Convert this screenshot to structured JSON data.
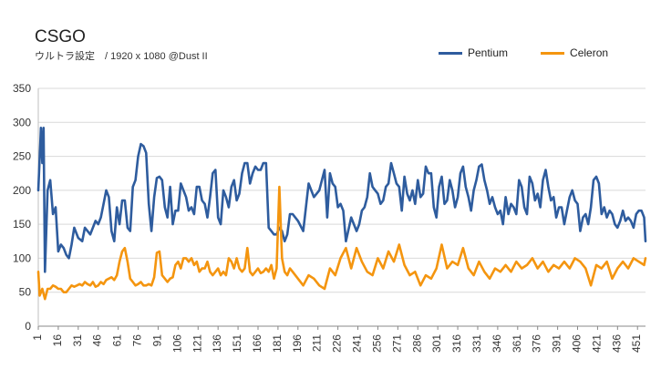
{
  "chart_data": {
    "type": "line",
    "title": "CSGO",
    "subtitle": "ウルトラ設定　/ 1920 x 1080 @Dust II",
    "xlabel": "",
    "ylabel": "",
    "ylim": [
      0,
      350
    ],
    "yticks": [
      0,
      50,
      100,
      150,
      200,
      250,
      300,
      350
    ],
    "xlim": [
      1,
      457
    ],
    "xticks": [
      1,
      16,
      31,
      46,
      61,
      76,
      91,
      106,
      121,
      136,
      151,
      166,
      181,
      196,
      211,
      226,
      241,
      256,
      271,
      286,
      301,
      316,
      331,
      346,
      361,
      376,
      391,
      406,
      421,
      436,
      451
    ],
    "grid": "horizontal",
    "legend_position": "top-right",
    "series": [
      {
        "name": "Pentium",
        "color": "#2E5C9E",
        "x": [
          1,
          3,
          4,
          5,
          6,
          8,
          10,
          12,
          14,
          16,
          18,
          20,
          22,
          24,
          26,
          28,
          31,
          34,
          36,
          40,
          44,
          46,
          48,
          50,
          52,
          54,
          56,
          58,
          60,
          62,
          64,
          66,
          68,
          70,
          72,
          74,
          76,
          78,
          80,
          82,
          84,
          86,
          88,
          90,
          92,
          94,
          96,
          98,
          100,
          102,
          104,
          106,
          108,
          110,
          112,
          114,
          116,
          118,
          120,
          122,
          124,
          126,
          128,
          130,
          132,
          134,
          136,
          138,
          140,
          142,
          144,
          146,
          148,
          150,
          152,
          154,
          156,
          158,
          160,
          162,
          164,
          166,
          168,
          170,
          172,
          174,
          176,
          178,
          180,
          182,
          184,
          186,
          188,
          190,
          192,
          196,
          200,
          204,
          208,
          212,
          214,
          216,
          218,
          220,
          222,
          224,
          226,
          228,
          230,
          232,
          236,
          240,
          242,
          244,
          246,
          248,
          250,
          252,
          254,
          256,
          258,
          260,
          262,
          264,
          266,
          268,
          270,
          272,
          274,
          276,
          278,
          280,
          282,
          284,
          286,
          288,
          290,
          292,
          294,
          296,
          298,
          300,
          302,
          304,
          306,
          308,
          310,
          312,
          314,
          316,
          318,
          320,
          322,
          324,
          326,
          328,
          330,
          332,
          334,
          336,
          338,
          340,
          342,
          344,
          346,
          348,
          350,
          352,
          354,
          356,
          358,
          360,
          362,
          364,
          366,
          368,
          370,
          372,
          374,
          376,
          378,
          380,
          382,
          384,
          386,
          388,
          390,
          392,
          394,
          396,
          398,
          400,
          402,
          404,
          406,
          408,
          410,
          412,
          414,
          416,
          418,
          420,
          422,
          424,
          426,
          428,
          430,
          432,
          434,
          436,
          438,
          440,
          442,
          444,
          446,
          448,
          450,
          452,
          454,
          456,
          457
        ],
        "values": [
          200,
          292,
          240,
          292,
          80,
          200,
          215,
          165,
          175,
          110,
          120,
          115,
          105,
          100,
          120,
          145,
          130,
          125,
          145,
          135,
          155,
          150,
          160,
          180,
          200,
          190,
          140,
          125,
          175,
          150,
          185,
          185,
          145,
          140,
          205,
          215,
          250,
          268,
          265,
          255,
          180,
          140,
          190,
          218,
          220,
          215,
          175,
          160,
          205,
          150,
          170,
          170,
          210,
          200,
          190,
          170,
          175,
          165,
          205,
          205,
          185,
          180,
          160,
          190,
          225,
          230,
          160,
          150,
          200,
          190,
          175,
          205,
          215,
          185,
          195,
          225,
          240,
          240,
          210,
          225,
          235,
          230,
          230,
          240,
          240,
          145,
          140,
          135,
          135,
          145,
          140,
          125,
          135,
          165,
          165,
          155,
          140,
          210,
          190,
          200,
          215,
          230,
          160,
          225,
          210,
          205,
          175,
          180,
          170,
          125,
          160,
          140,
          150,
          170,
          175,
          190,
          225,
          205,
          200,
          195,
          180,
          185,
          205,
          210,
          240,
          225,
          210,
          205,
          170,
          220,
          195,
          185,
          200,
          180,
          215,
          190,
          195,
          235,
          225,
          225,
          175,
          160,
          205,
          220,
          180,
          185,
          215,
          200,
          175,
          190,
          225,
          235,
          205,
          190,
          170,
          200,
          215,
          235,
          238,
          215,
          200,
          180,
          190,
          175,
          165,
          170,
          150,
          190,
          165,
          180,
          175,
          165,
          215,
          205,
          175,
          165,
          220,
          210,
          185,
          195,
          175,
          215,
          230,
          205,
          185,
          190,
          160,
          175,
          175,
          150,
          170,
          190,
          200,
          185,
          180,
          140,
          160,
          165,
          150,
          175,
          215,
          220,
          210,
          165,
          175,
          160,
          170,
          165,
          150,
          145,
          155,
          170,
          155,
          160,
          155,
          145,
          165,
          170,
          170,
          160,
          125
        ]
      },
      {
        "name": "Celeron",
        "color": "#F4950F",
        "x": [
          1,
          2,
          4,
          6,
          8,
          10,
          12,
          14,
          16,
          18,
          20,
          22,
          24,
          26,
          28,
          30,
          32,
          34,
          36,
          38,
          40,
          42,
          44,
          46,
          48,
          50,
          52,
          54,
          56,
          58,
          60,
          62,
          64,
          66,
          68,
          70,
          72,
          74,
          76,
          78,
          80,
          82,
          84,
          86,
          88,
          90,
          92,
          94,
          96,
          98,
          100,
          102,
          104,
          106,
          108,
          110,
          112,
          114,
          116,
          118,
          120,
          122,
          124,
          126,
          128,
          130,
          132,
          134,
          136,
          138,
          140,
          142,
          144,
          146,
          148,
          150,
          152,
          154,
          156,
          158,
          160,
          162,
          164,
          166,
          168,
          170,
          172,
          174,
          176,
          178,
          180,
          182,
          184,
          186,
          188,
          190,
          192,
          196,
          200,
          204,
          208,
          212,
          216,
          220,
          224,
          228,
          232,
          236,
          240,
          244,
          248,
          252,
          256,
          260,
          264,
          268,
          272,
          276,
          280,
          284,
          288,
          292,
          296,
          300,
          304,
          308,
          312,
          316,
          320,
          324,
          328,
          332,
          336,
          340,
          344,
          348,
          352,
          356,
          360,
          364,
          368,
          372,
          376,
          380,
          384,
          388,
          392,
          396,
          400,
          404,
          408,
          412,
          416,
          420,
          424,
          428,
          432,
          436,
          440,
          444,
          448,
          452,
          456,
          457
        ],
        "values": [
          80,
          45,
          55,
          40,
          55,
          55,
          60,
          58,
          55,
          55,
          50,
          50,
          55,
          60,
          58,
          60,
          62,
          60,
          65,
          62,
          60,
          65,
          58,
          60,
          65,
          62,
          68,
          70,
          72,
          68,
          75,
          95,
          110,
          115,
          95,
          70,
          65,
          60,
          62,
          65,
          60,
          60,
          62,
          60,
          72,
          108,
          110,
          75,
          70,
          65,
          70,
          72,
          90,
          95,
          85,
          100,
          100,
          95,
          100,
          90,
          95,
          80,
          85,
          85,
          95,
          80,
          75,
          80,
          85,
          75,
          80,
          75,
          100,
          95,
          85,
          100,
          85,
          80,
          85,
          115,
          80,
          75,
          80,
          85,
          78,
          80,
          85,
          80,
          90,
          70,
          85,
          205,
          100,
          80,
          75,
          85,
          80,
          70,
          60,
          75,
          70,
          60,
          55,
          85,
          75,
          100,
          115,
          85,
          115,
          95,
          80,
          75,
          100,
          85,
          110,
          95,
          120,
          90,
          75,
          80,
          60,
          75,
          70,
          85,
          120,
          85,
          95,
          90,
          115,
          85,
          75,
          95,
          80,
          70,
          85,
          80,
          90,
          80,
          95,
          85,
          90,
          100,
          85,
          95,
          80,
          90,
          85,
          95,
          85,
          100,
          95,
          85,
          60,
          90,
          85,
          95,
          70,
          85,
          95,
          85,
          100,
          95,
          90,
          100
        ]
      }
    ]
  }
}
